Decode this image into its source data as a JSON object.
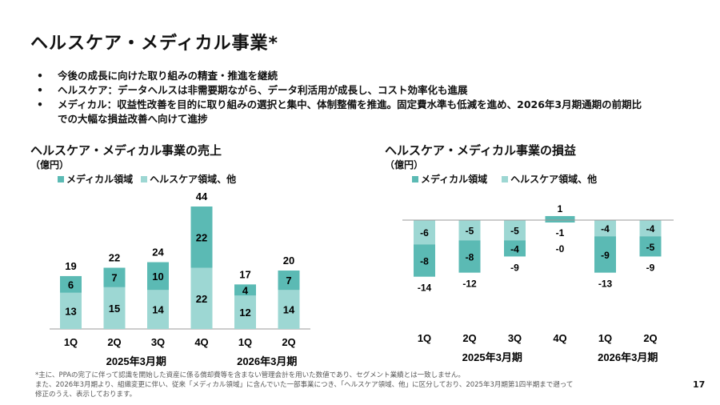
{
  "page": {
    "title": "ヘルスケア・メディカル事業*",
    "bullets": [
      "今後の成長に向けた取り組みの精査・推進を継続",
      "ヘルスケア：データヘルスは非需要期ながら、データ利活用が成長し、コスト効率化も進展",
      "メディカル：収益性改善を目的に取り組みの選択と集中、体制整備を推進。固定費水準も低減を進め、2026年3月期通期の前期比での大幅な損益改善へ向けて進捗"
    ],
    "bullet_glyph": "•",
    "footnotes": [
      "*主に、PPAの完了に伴って認識を開始した資産に係る償却費等を含まない管理会計を用いた数値であり、セグメント業績とは一致しません。",
      "また、2026年3月期より、組織変更に伴い、従来「メディカル領域」に含んでいた一部事業につき、「ヘルスケア領域、他」に区分しており、2025年3月期第1四半期まで遡って",
      "修正のうえ、表示しております。"
    ],
    "page_number": "17",
    "colors": {
      "medical": "#5bbab4",
      "healthcare": "#9dd7d3",
      "axis": "#999999"
    }
  },
  "chart_data": [
    {
      "type": "bar",
      "stacked": true,
      "title": "ヘルスケア・メディカル事業の売上",
      "unit": "（億円）",
      "categories": [
        "1Q",
        "2Q",
        "3Q",
        "4Q",
        "1Q",
        "2Q"
      ],
      "groups": [
        {
          "label": "2025年3月期",
          "span": [
            0,
            3
          ]
        },
        {
          "label": "2026年3月期",
          "span": [
            4,
            5
          ]
        }
      ],
      "series": [
        {
          "name": "メディカル領域",
          "color": "#5bbab4",
          "values": [
            6,
            7,
            10,
            22,
            4,
            7
          ]
        },
        {
          "name": "ヘルスケア領域、他",
          "color": "#9dd7d3",
          "values": [
            13,
            15,
            14,
            22,
            12,
            14
          ]
        }
      ],
      "totals": [
        19,
        22,
        24,
        44,
        17,
        20
      ],
      "legend": "top",
      "ylim": [
        0,
        44
      ],
      "grid": false
    },
    {
      "type": "bar",
      "stacked": true,
      "title": "ヘルスケア・メディカル事業の損益",
      "unit": "（億円）",
      "categories": [
        "1Q",
        "2Q",
        "3Q",
        "4Q",
        "1Q",
        "2Q"
      ],
      "groups": [
        {
          "label": "2025年3月期",
          "span": [
            0,
            3
          ]
        },
        {
          "label": "2026年3月期",
          "span": [
            4,
            5
          ]
        }
      ],
      "series": [
        {
          "name": "メディカル領域",
          "color": "#5bbab4",
          "values": [
            -8,
            -8,
            -4,
            1,
            -9,
            -5
          ],
          "labels": [
            "-8",
            "-8",
            "-4",
            "1",
            "-9",
            "-5"
          ]
        },
        {
          "name": "ヘルスケア領域、他",
          "color": "#9dd7d3",
          "values": [
            -6,
            -5,
            -5,
            -1,
            -4,
            -4
          ],
          "labels": [
            "-6",
            "-5",
            "-5",
            "-1",
            "-4",
            "-4"
          ]
        }
      ],
      "totals": [
        "-14",
        "-12",
        "-9",
        "-0",
        "-13",
        "-9"
      ],
      "legend": "top",
      "ylim": [
        -14,
        1
      ],
      "grid": false
    }
  ]
}
